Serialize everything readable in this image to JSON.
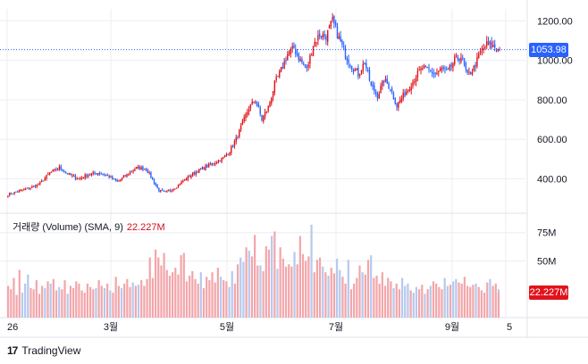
{
  "colors": {
    "up": "#e0131c",
    "down": "#2962ff",
    "vol_up": "#f3a6aa",
    "vol_down": "#b6c9ee",
    "grid": "#eceef3",
    "price_line": "#2962ff"
  },
  "price_axis": {
    "ticks": [
      "1200.00",
      "1000.00",
      "800.00",
      "600.00",
      "400.00"
    ],
    "tick_values": [
      1200,
      1000,
      800,
      600,
      400
    ],
    "last_price_label": "1053.98"
  },
  "volume_axis": {
    "ticks": [
      "75M",
      "50M"
    ],
    "tick_values": [
      75,
      50
    ],
    "last_volume_label": "22.227M"
  },
  "volume_legend": {
    "label": "거래량 (Volume) (SMA, 9)",
    "value": "22.227M"
  },
  "time_axis": {
    "labels": [
      "26",
      "3월",
      "5월",
      "7월",
      "9월",
      "5"
    ]
  },
  "brand": {
    "logo": "17",
    "name": "TradingView"
  },
  "chart_data": {
    "type": "candlestick",
    "x_labels": [
      "26",
      "3월",
      "5월",
      "7월",
      "9월",
      "5"
    ],
    "price_ylim": [
      230,
      1260
    ],
    "volume_ylim": [
      0,
      85
    ],
    "last_price": 1053.98,
    "last_volume_m": 22.227,
    "price_path": [
      [
        0,
        320
      ],
      [
        8,
        340
      ],
      [
        14,
        355
      ],
      [
        20,
        375
      ],
      [
        26,
        430
      ],
      [
        32,
        455
      ],
      [
        38,
        420
      ],
      [
        44,
        400
      ],
      [
        50,
        420
      ],
      [
        56,
        430
      ],
      [
        62,
        415
      ],
      [
        68,
        385
      ],
      [
        74,
        420
      ],
      [
        80,
        455
      ],
      [
        86,
        450
      ],
      [
        90,
        395
      ],
      [
        94,
        340
      ],
      [
        98,
        330
      ],
      [
        104,
        355
      ],
      [
        110,
        395
      ],
      [
        116,
        430
      ],
      [
        122,
        455
      ],
      [
        128,
        480
      ],
      [
        134,
        505
      ],
      [
        138,
        540
      ],
      [
        142,
        600
      ],
      [
        146,
        680
      ],
      [
        150,
        760
      ],
      [
        154,
        800
      ],
      [
        158,
        700
      ],
      [
        162,
        760
      ],
      [
        166,
        880
      ],
      [
        170,
        950
      ],
      [
        174,
        1030
      ],
      [
        178,
        1060
      ],
      [
        182,
        1000
      ],
      [
        186,
        950
      ],
      [
        190,
        1080
      ],
      [
        194,
        1130
      ],
      [
        198,
        1120
      ],
      [
        202,
        1200
      ],
      [
        206,
        1110
      ],
      [
        210,
        1030
      ],
      [
        214,
        970
      ],
      [
        218,
        930
      ],
      [
        222,
        990
      ],
      [
        226,
        870
      ],
      [
        230,
        820
      ],
      [
        234,
        900
      ],
      [
        238,
        860
      ],
      [
        242,
        770
      ],
      [
        246,
        820
      ],
      [
        250,
        870
      ],
      [
        254,
        920
      ],
      [
        258,
        960
      ],
      [
        262,
        950
      ],
      [
        266,
        930
      ],
      [
        270,
        955
      ],
      [
        274,
        940
      ],
      [
        278,
        1000
      ],
      [
        282,
        1020
      ],
      [
        286,
        920
      ],
      [
        290,
        960
      ],
      [
        294,
        1040
      ],
      [
        298,
        1080
      ],
      [
        302,
        1070
      ],
      [
        306,
        1054
      ]
    ],
    "volume_m": [
      28,
      25,
      35,
      20,
      42,
      22,
      30,
      38,
      26,
      25,
      33,
      21,
      28,
      26,
      32,
      30,
      34,
      24,
      27,
      25,
      33,
      21,
      28,
      26,
      32,
      30,
      24,
      22,
      30,
      27,
      25,
      26,
      33,
      28,
      26,
      30,
      24,
      22,
      36,
      28,
      26,
      30,
      34,
      27,
      31,
      28,
      29,
      33,
      28,
      34,
      53,
      35,
      60,
      53,
      46,
      57,
      42,
      37,
      40,
      44,
      38,
      55,
      57,
      32,
      37,
      41,
      34,
      30,
      40,
      26,
      36,
      33,
      40,
      31,
      44,
      36,
      33,
      32,
      27,
      41,
      30,
      47,
      53,
      49,
      62,
      59,
      54,
      73,
      46,
      46,
      41,
      63,
      60,
      72,
      76,
      43,
      62,
      52,
      45,
      47,
      45,
      58,
      47,
      72,
      56,
      50,
      54,
      82,
      40,
      51,
      53,
      45,
      40,
      37,
      44,
      39,
      52,
      42,
      36,
      30,
      51,
      25,
      30,
      35,
      46,
      40,
      38,
      51,
      55,
      35,
      37,
      30,
      40,
      28,
      35,
      32,
      26,
      30,
      25,
      35,
      28,
      30,
      24,
      22,
      27,
      25,
      29,
      21,
      25,
      28,
      32,
      30,
      27,
      25,
      35,
      28,
      29,
      32,
      34,
      31,
      30,
      36,
      28,
      27,
      29,
      30,
      27,
      24,
      22,
      31,
      34,
      28,
      30,
      25
    ]
  }
}
